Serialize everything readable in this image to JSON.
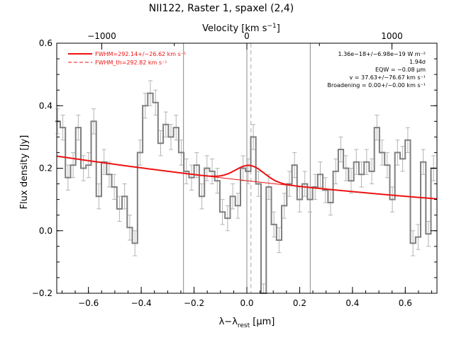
{
  "chart_data": {
    "type": "line",
    "title": "NII122, Raster 1, spaxel (2,4)",
    "xlabel": "λ−λrest [μm]",
    "xlabel_parts": {
      "main": "λ−λ",
      "sub": "rest",
      "unit": " [μm]"
    },
    "ylabel": "Flux density [Jy]",
    "top_axis_label": "Velocity [km s⁻¹]",
    "top_axis_label_parts": {
      "main": "Velocity [km s",
      "sup": "−1",
      "end": "]"
    },
    "xlim": [
      -0.72,
      0.72
    ],
    "ylim": [
      -0.2,
      0.6
    ],
    "xticks": [
      -0.6,
      -0.4,
      -0.2,
      0.0,
      0.2,
      0.4,
      0.6
    ],
    "xtick_labels": [
      "−0.6",
      "−0.4",
      "−0.2",
      "0.0",
      "0.2",
      "0.4",
      "0.6"
    ],
    "yticks": [
      -0.2,
      0.0,
      0.2,
      0.4,
      0.6
    ],
    "ytick_labels": [
      "−0.2",
      "0.0",
      "0.2",
      "0.4",
      "0.6"
    ],
    "top_ticks_um": [
      -0.5495,
      0.0,
      0.5495
    ],
    "top_tick_labels": [
      "−1000",
      "0",
      "1000"
    ],
    "vertical_lines_um": [
      -0.24,
      0.0,
      0.24
    ],
    "dashed_line_um": 0.0155,
    "spectrum": {
      "x": [
        -0.7165,
        -0.697,
        -0.6775,
        -0.658,
        -0.6385,
        -0.619,
        -0.5995,
        -0.58,
        -0.5605,
        -0.541,
        -0.5215,
        -0.502,
        -0.4825,
        -0.463,
        -0.4435,
        -0.424,
        -0.4045,
        -0.385,
        -0.3655,
        -0.346,
        -0.3265,
        -0.307,
        -0.2875,
        -0.268,
        -0.2485,
        -0.229,
        -0.2095,
        -0.19,
        -0.1705,
        -0.151,
        -0.1315,
        -0.112,
        -0.0925,
        -0.073,
        -0.0535,
        -0.034,
        -0.0145,
        0.005,
        0.0245,
        0.044,
        0.0635,
        0.083,
        0.1025,
        0.122,
        0.1415,
        0.161,
        0.1805,
        0.2,
        0.2195,
        0.239,
        0.2585,
        0.278,
        0.2975,
        0.317,
        0.3365,
        0.356,
        0.3755,
        0.395,
        0.4145,
        0.434,
        0.4535,
        0.473,
        0.4925,
        0.512,
        0.5315,
        0.551,
        0.5705,
        0.59,
        0.6095,
        0.629,
        0.6485,
        0.668,
        0.6875,
        0.707
      ],
      "y": [
        0.35,
        0.33,
        0.17,
        0.21,
        0.33,
        0.2,
        0.21,
        0.35,
        0.11,
        0.22,
        0.18,
        0.14,
        0.07,
        0.11,
        0.01,
        -0.04,
        0.25,
        0.4,
        0.44,
        0.41,
        0.28,
        0.34,
        0.3,
        0.33,
        0.25,
        0.19,
        0.17,
        0.21,
        0.11,
        0.2,
        0.19,
        0.16,
        0.06,
        0.04,
        0.11,
        0.08,
        0.2,
        0.19,
        0.3,
        0.15,
        -0.21,
        0.14,
        0.02,
        -0.03,
        0.08,
        0.15,
        0.21,
        0.1,
        0.15,
        0.1,
        0.14,
        0.18,
        0.13,
        0.09,
        0.19,
        0.26,
        0.2,
        0.16,
        0.22,
        0.18,
        0.22,
        0.19,
        0.33,
        0.25,
        0.21,
        0.1,
        0.25,
        0.23,
        0.29,
        -0.04,
        -0.02,
        0.22,
        -0.01,
        0.2
      ],
      "error": 0.04
    },
    "fit": {
      "continuum_a": 0.16,
      "continuum_b": -0.095,
      "continuum_c": 0.02,
      "gauss_amp": 0.05,
      "gauss_center": 0.0113,
      "gauss_sigma": 0.054
    },
    "legend": [
      {
        "label": "FWHM=292.14+/−26.62 km s⁻¹",
        "style": "solid",
        "color": "#ee1111"
      },
      {
        "label": "FWHM_th=292.82 km s⁻¹",
        "style": "dashed",
        "color": "#ee1111"
      }
    ],
    "annotations": [
      "1.36e−18+/−6.98e−19 W m⁻²",
      "1.94σ",
      "EQW = −0.08 μm",
      "v = 37.63+/−76.67 km s⁻¹",
      "Broadening = 0.00+/−0.00 km s⁻¹"
    ],
    "colors": {
      "spectrum": "#7f7f7f",
      "errorbar": "#b4b4b4",
      "fit": "#ee1111",
      "guide": "#888888",
      "axes": "#000000"
    }
  }
}
